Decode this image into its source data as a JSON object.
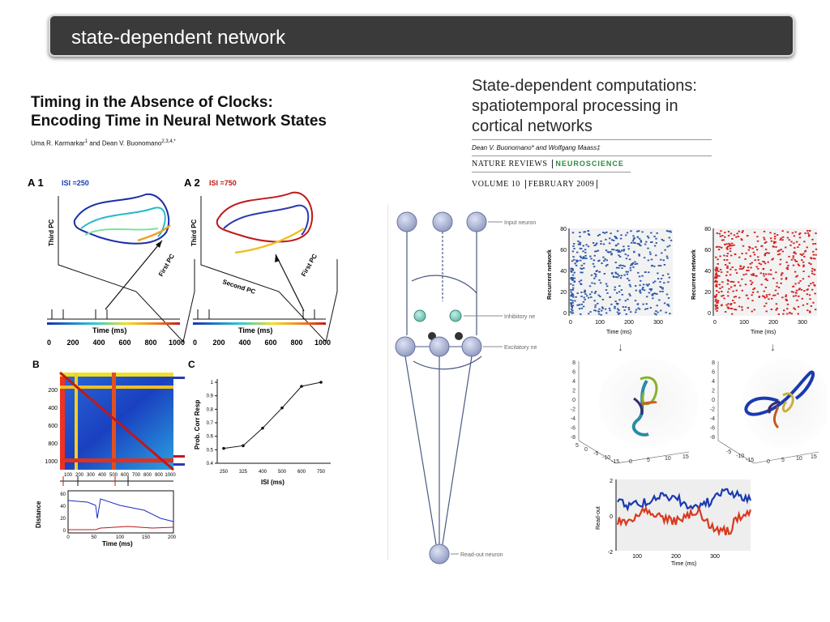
{
  "slide": {
    "title": "state-dependent network"
  },
  "paper1": {
    "title_line1": "Timing in the Absence of Clocks:",
    "title_line2": "Encoding Time in Neural Network States",
    "authors": "Uma R. Karmarkar",
    "author_sup1": "1",
    "authors_mid": " and Dean V. Buonomano",
    "author_sup2": "2,3,4,*",
    "panel_a1": "A 1",
    "isi_a1": "ISI =250",
    "panel_a2": "A 2",
    "isi_a2": "ISI =750",
    "third_pc": "Third PC",
    "first_pc": "First PC",
    "second_pc": "Second PC",
    "time_ms": "Time (ms)",
    "time_ticks": [
      "0",
      "200",
      "400",
      "600",
      "800",
      "1000"
    ],
    "panel_b": "B",
    "b_yticks": [
      "200",
      "400",
      "600",
      "800",
      "1000"
    ],
    "b_xticks": [
      "100",
      "200",
      "300",
      "400",
      "500",
      "600",
      "700",
      "800",
      "900",
      "1000"
    ],
    "distance": "Distance",
    "dist_yticks": [
      "60",
      "40",
      "20",
      "0"
    ],
    "dist_xticks": [
      "0",
      "50",
      "100",
      "150",
      "200"
    ],
    "panel_c": "C",
    "chart_data": {
      "type": "line",
      "xlabel": "ISI (ms)",
      "ylabel": "Prob. Corr Resp",
      "categories": [
        "250",
        "325",
        "400",
        "500",
        "600",
        "750"
      ],
      "values": [
        0.51,
        0.53,
        0.66,
        0.81,
        0.97,
        1.0
      ],
      "ylim": [
        0.4,
        1.0
      ],
      "yticks": [
        "1",
        "0.9",
        "0.8",
        "0.7",
        "0.6",
        "0.5",
        "0.4"
      ]
    }
  },
  "paper2": {
    "title_line1": "State-dependent computations:",
    "title_line2": "spatiotemporal processing in",
    "title_line3": "cortical networks",
    "authors": "Dean V. Buonomano* and Wolfgang Maass‡",
    "journal_left": "NATURE REVIEWS",
    "journal_right": "NEUROSCIENCE",
    "volume_left": "VOLUME 10",
    "volume_right": "FEBRUARY 2009",
    "journal_accent": "#2e8b3e"
  },
  "network": {
    "input_label": "Input neuron",
    "inhibitory_label": "Inhibitory ne",
    "excitatory_label": "Excitatory ne",
    "readout_label": "Read-out neuron"
  },
  "raster": {
    "ylabel": "Recurrent network",
    "xlabel": "Time (ms)",
    "yticks": [
      "80",
      "60",
      "40",
      "20",
      "0"
    ],
    "xticks": [
      "0",
      "100",
      "200",
      "300"
    ],
    "color_left": "#2d58a8",
    "color_right": "#d32020"
  },
  "traj3d": {
    "yticks": [
      "8",
      "6",
      "4",
      "2",
      "0",
      "-2",
      "-4",
      "-6",
      "-8"
    ],
    "xticks_left": [
      "5",
      "0",
      "-5",
      "-10",
      "-15"
    ],
    "xticks_right": [
      "-5",
      "-10",
      "-15"
    ],
    "xticks_under": [
      "0",
      "5",
      "10",
      "15"
    ]
  },
  "readout": {
    "ylabel": "Read-out",
    "xlabel": "Time (ms)",
    "yticks": [
      "2",
      "0",
      "-2"
    ],
    "xticks": [
      "100",
      "200",
      "300"
    ]
  }
}
